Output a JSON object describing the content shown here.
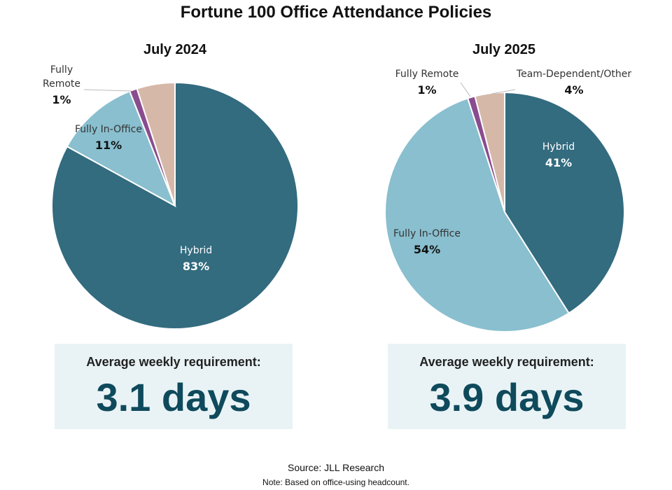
{
  "title": "Fortune 100 Office Attendance Policies",
  "colors": {
    "Hybrid": "#336b7f",
    "Fully In-Office": "#89bfcf",
    "Fully Remote": "#8a4c8e",
    "Team-Dependent/Other": "#d6b8a8"
  },
  "chart_data": [
    {
      "type": "pie",
      "title": "July 2024",
      "slices": [
        {
          "label": "Hybrid",
          "value": 83,
          "display": "83%"
        },
        {
          "label": "Fully In-Office",
          "value": 11,
          "display": "11%"
        },
        {
          "label": "Fully Remote",
          "value": 1,
          "display": "1%"
        },
        {
          "label": "Team-Dependent/Other",
          "value": 5,
          "display": ""
        }
      ]
    },
    {
      "type": "pie",
      "title": "July 2025",
      "slices": [
        {
          "label": "Hybrid",
          "value": 41,
          "display": "41%"
        },
        {
          "label": "Fully In-Office",
          "value": 54,
          "display": "54%"
        },
        {
          "label": "Fully Remote",
          "value": 1,
          "display": "1%"
        },
        {
          "label": "Team-Dependent/Other",
          "value": 4,
          "display": "4%"
        }
      ]
    }
  ],
  "stats": [
    {
      "label": "Average weekly requirement:",
      "value": "3.1 days"
    },
    {
      "label": "Average weekly requirement:",
      "value": "3.9 days"
    }
  ],
  "source": "Source: JLL Research",
  "note": "Note: Based on office-using headcount."
}
